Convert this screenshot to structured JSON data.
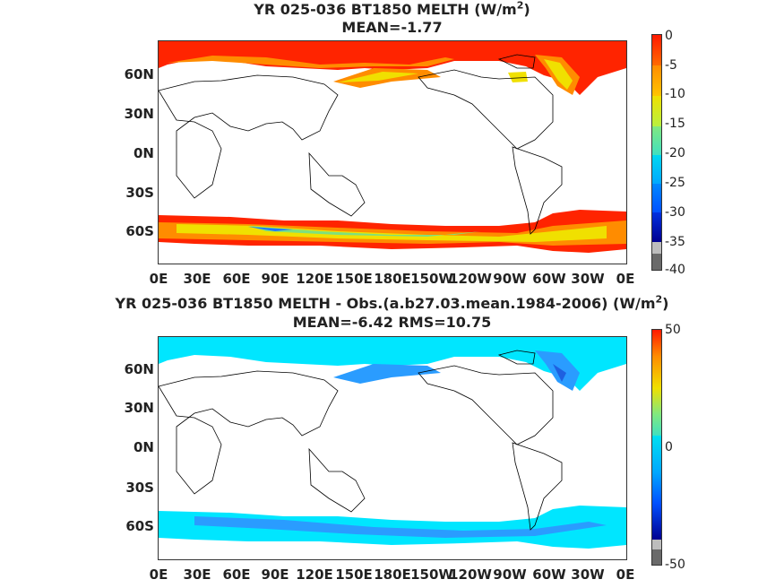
{
  "panel1": {
    "title_prefix": "YR 025-036 BT1850  MELTH (W/m",
    "title_exp": "2",
    "title_suffix": ")",
    "subtitle": "MEAN=-1.77",
    "colorbar_labels": [
      "0",
      "-5",
      "-10",
      "-15",
      "-20",
      "-25",
      "-30",
      "-35",
      "-40"
    ]
  },
  "panel2": {
    "title_prefix": "YR 025-036 BT1850 MELTH - Obs.(a.b27.03.mean.1984-2006) (W/m",
    "title_exp": "2",
    "title_suffix": ")",
    "subtitle": "MEAN=-6.42 RMS=10.75",
    "colorbar_labels": [
      "50",
      "0",
      "-50"
    ]
  },
  "lat_labels": [
    "60N",
    "30N",
    "0N",
    "30S",
    "60S"
  ],
  "lon_labels": [
    "0E",
    "30E",
    "60E",
    "90E",
    "120E",
    "150E",
    "180E",
    "150W",
    "120W",
    "90W",
    "60W",
    "30W",
    "0E"
  ],
  "colors": {
    "ice_red": "#ff2400",
    "ice_orange": "#ff8c00",
    "ice_yellow": "#f0e000",
    "ice_green": "#7ee07e",
    "diff_cyan": "#00e6ff",
    "diff_blue": "#1e78ff",
    "land_outline": "#000000"
  }
}
